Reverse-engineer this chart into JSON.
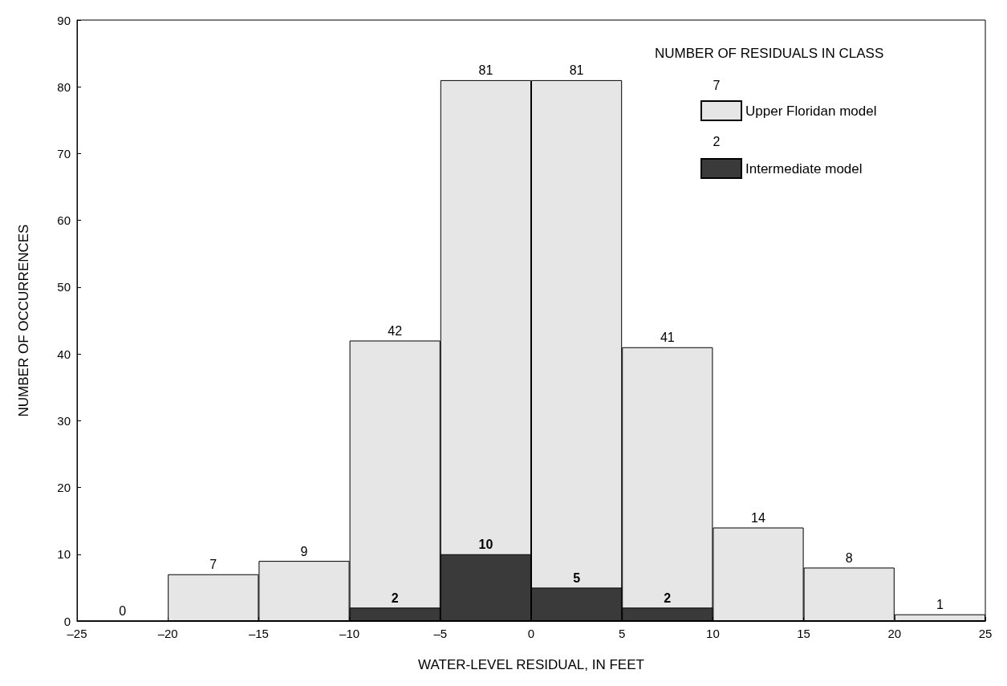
{
  "chart_data": {
    "type": "histogram",
    "xlabel": "WATER-LEVEL RESIDUAL, IN FEET",
    "ylabel": "NUMBER OF OCCURRENCES",
    "legend_title": "NUMBER OF RESIDUALS IN CLASS",
    "bins": [
      -25,
      -20,
      -15,
      -10,
      -5,
      0,
      5,
      10,
      15,
      20,
      25
    ],
    "series": [
      {
        "name": "Upper Floridan model",
        "color": "#e6e6e6",
        "values": [
          0,
          7,
          9,
          42,
          81,
          81,
          41,
          14,
          8,
          1
        ]
      },
      {
        "name": "Intermediate model",
        "color": "#3a3a3a",
        "values": [
          null,
          null,
          null,
          2,
          10,
          5,
          2,
          null,
          null,
          null
        ]
      }
    ],
    "annotations": [
      "7",
      "2"
    ],
    "xlim": [
      -25,
      25
    ],
    "xticks": [
      {
        "value": -25,
        "label": "–25"
      },
      {
        "value": -20,
        "label": "–20"
      },
      {
        "value": -15,
        "label": "–15"
      },
      {
        "value": -10,
        "label": "–10"
      },
      {
        "value": -5,
        "label": "–5"
      },
      0,
      5,
      10,
      15,
      20,
      25
    ],
    "ylim": [
      0,
      90
    ],
    "yticks": [
      0,
      10,
      20,
      30,
      40,
      50,
      60,
      70,
      80,
      90
    ],
    "data_labels": true,
    "legend": "top right",
    "grid": false
  }
}
